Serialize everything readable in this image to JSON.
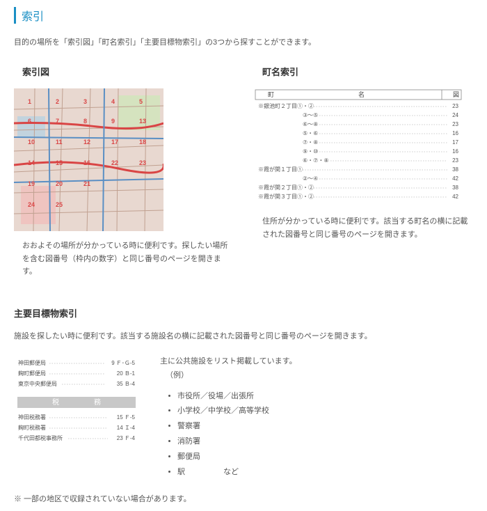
{
  "page_title": "索引",
  "intro": "目的の場所を「索引図」「町名索引」「主要目標物索引」の3つから探すことができます。",
  "map_index": {
    "title": "索引図",
    "desc": "おおよその場所が分かっている時に便利です。探したい場所を含む図番号（枠内の数字）と同じ番号のページを開きます。"
  },
  "town_index": {
    "title": "町名索引",
    "desc": "住所が分かっている時に便利です。該当する町名の横に記載された図番号と同じ番号のページを開きます。",
    "table": {
      "header_left": "町",
      "header_mid": "名",
      "header_right": "図",
      "rows": [
        {
          "name": "※銀池町２丁目①・②",
          "page": "23"
        },
        {
          "name": "③～⑤",
          "page": "24"
        },
        {
          "name": "⑥～⑧",
          "page": "23"
        },
        {
          "name": "⑤・⑥",
          "page": "16"
        },
        {
          "name": "⑦・⑧",
          "page": "17"
        },
        {
          "name": "⑨・⑩",
          "page": "16"
        },
        {
          "name": "⑥・⑦・⑧",
          "page": "23"
        },
        {
          "name": "※霞が関１丁目①",
          "page": "38"
        },
        {
          "name": "②～④",
          "page": "42"
        },
        {
          "name": "※霞が関２丁目①・②",
          "page": "38"
        },
        {
          "name": "※霞が関３丁目①・②",
          "page": "42"
        }
      ]
    }
  },
  "landmark_index": {
    "title": "主要目標物索引",
    "intro": "施設を探したい時に便利です。該当する施設名の横に記載された図番号と同じ番号のページを開きます。",
    "post_rows": [
      {
        "name": "神田郵便局",
        "page": "9 Ｆ･Ｇ-5"
      },
      {
        "name": "麹町郵便局",
        "page": "20 Ｂ-1"
      },
      {
        "name": "東京中央郵便局",
        "page": "35 Ｂ-4"
      }
    ],
    "tax_header_left": "税",
    "tax_header_right": "務",
    "tax_rows": [
      {
        "name": "神田税務署",
        "page": "15 Ｆ-5"
      },
      {
        "name": "麹町税務署",
        "page": "14 Ｉ-4"
      },
      {
        "name": "千代田都税事務所",
        "page": "23 Ｆ-4"
      }
    ],
    "facility_note": "主に公共施設をリスト掲載しています。",
    "facility_example": "（例）",
    "facilities": [
      "市役所／役場／出張所",
      "小学校／中学校／高等学校",
      "警察署",
      "消防署",
      "郵便局",
      "駅　　　　　など"
    ]
  },
  "footnote": "※ 一部の地区で収録されていない場合があります。",
  "colors": {
    "accent": "#1a8fc4",
    "map_bg": "#e8d8d0",
    "map_road": "#d94545",
    "map_water": "#a8d0e8",
    "map_grid": "#888"
  }
}
